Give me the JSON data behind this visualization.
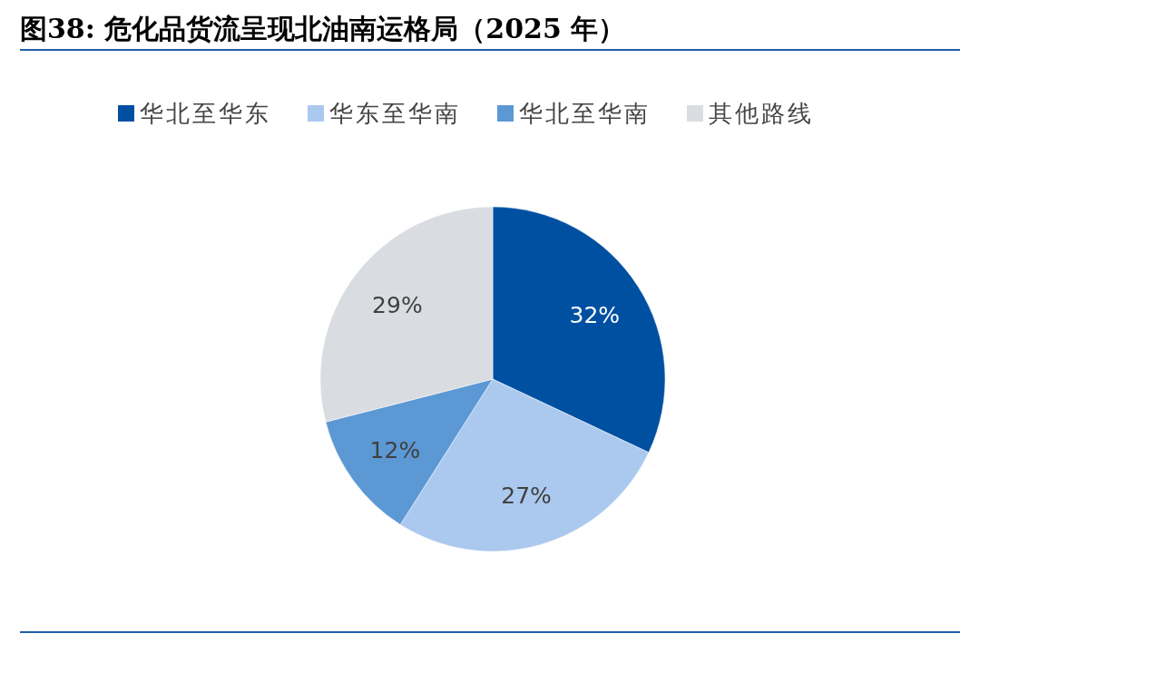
{
  "chart_data": {
    "type": "pie",
    "title": "图38: 危化品货流呈现北油南运格局（2025 年）",
    "categories": [
      "华北至华东",
      "华东至华南",
      "华北至华南",
      "其他路线"
    ],
    "values": [
      32,
      27,
      12,
      29
    ],
    "colors": [
      "#0050a2",
      "#abc9ef",
      "#5b98d4",
      "#d9dce1"
    ],
    "value_labels": [
      "32%",
      "27%",
      "12%",
      "29%"
    ],
    "legend": "top"
  }
}
